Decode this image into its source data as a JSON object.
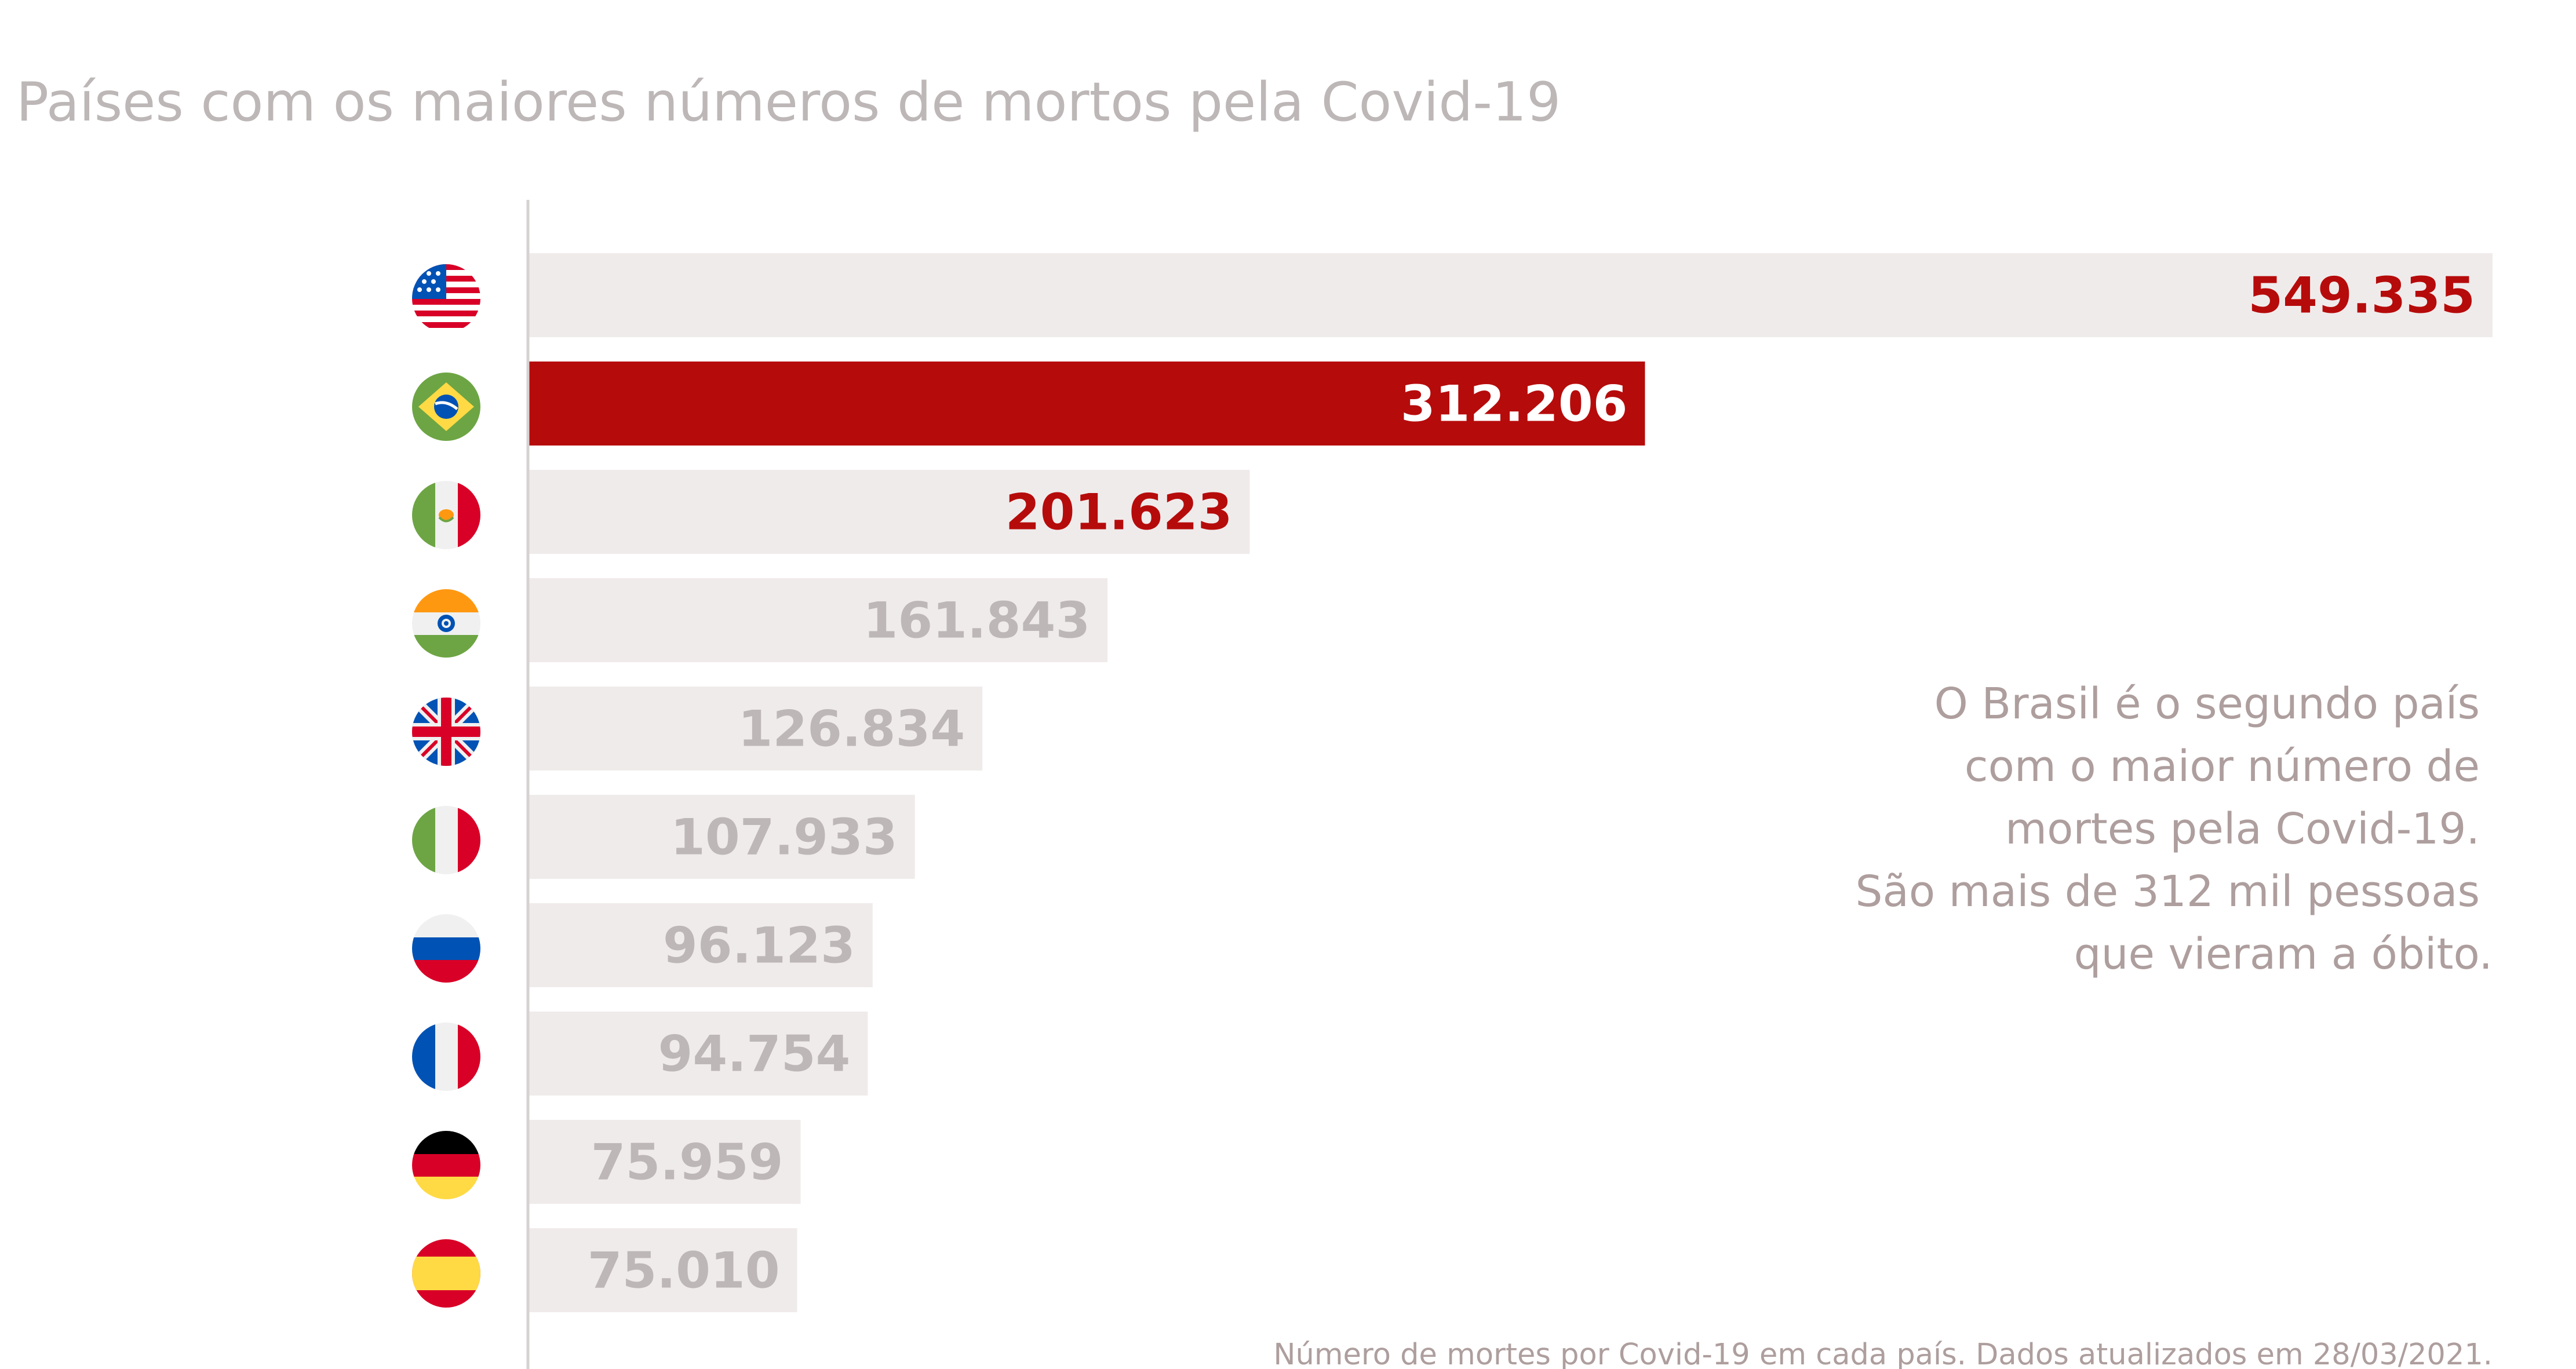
{
  "chart_data": {
    "type": "bar",
    "orientation": "horizontal",
    "title": "Países com os maiores números de mortos pela Covid-19",
    "categories": [
      "us-flag-icon",
      "brazil-flag-icon",
      "mexico-flag-icon",
      "india-flag-icon",
      "uk-flag-icon",
      "italy-flag-icon",
      "russia-flag-icon",
      "france-flag-icon",
      "germany-flag-icon",
      "spain-flag-icon"
    ],
    "values": [
      549335,
      312206,
      201623,
      161843,
      126834,
      107933,
      96123,
      94754,
      75959,
      75010
    ],
    "labels": [
      "549.335",
      "312.206",
      "201.623",
      "161.843",
      "126.834",
      "107.933",
      "96.123",
      "94.754",
      "75.959",
      "75.010"
    ],
    "xlim": [
      0,
      549335
    ],
    "xlabel": "",
    "ylabel": "",
    "grid": false,
    "colors": {
      "bar_default": "#f0ebeb",
      "bar_highlight": "#b60b0b",
      "label_default": "#bdb7b7",
      "label_highlight": "#b60b0b",
      "label_on_highlight": "#ffffff",
      "axis_line": "#d6d2d2"
    },
    "highlight_index": 1,
    "emphasis_label_indices": [
      0,
      2
    ],
    "annotation": [
      "O Brasil é o segundo país",
      "com o maior número de",
      "mortes pela Covid-19.",
      "São mais de 312 mil pessoas",
      "que vieram a óbito."
    ],
    "source": "Número de mortes por Covid-19 em cada país. Dados atualizados em 28/03/2021."
  }
}
